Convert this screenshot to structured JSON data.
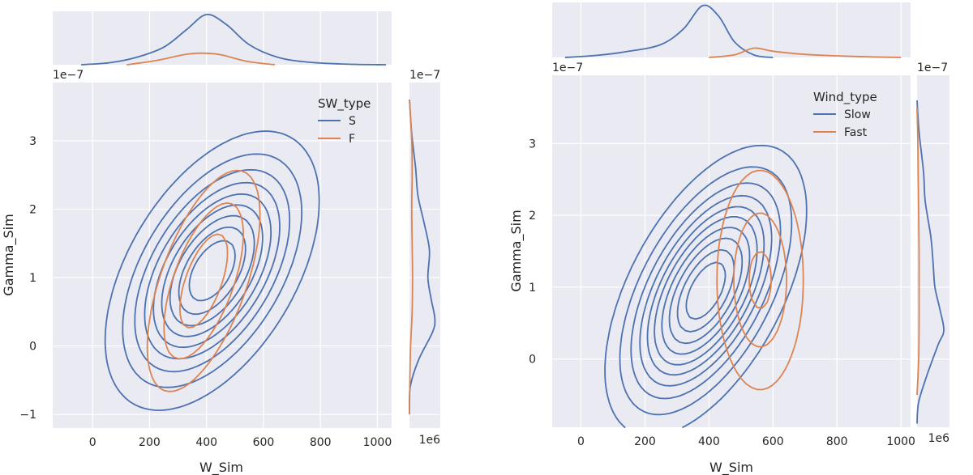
{
  "colors": {
    "panel_bg": "#EAEAF2",
    "grid": "#FFFFFF"
  },
  "chart_data": [
    {
      "type": "kde_contour_joint",
      "xlabel": "W_Sim",
      "ylabel": "Gamma_Sim",
      "y_offset_label": "1e−7",
      "xlim": [
        -140,
        1050
      ],
      "ylim": [
        -1.2,
        3.85
      ],
      "x_ticks": [
        0,
        200,
        400,
        600,
        800,
        1000
      ],
      "y_ticks": [
        -1,
        0,
        1,
        2,
        3
      ],
      "x_tick_labels": [
        "0",
        "200",
        "400",
        "600",
        "800",
        "1000"
      ],
      "y_tick_labels": [
        "−1",
        "0",
        "1",
        "2",
        "3"
      ],
      "grid": true,
      "legend": {
        "title": "SW_type",
        "placement": "top-right",
        "entries": [
          "S",
          "F"
        ]
      },
      "marginal_x_ylim": [
        0,
        1.0
      ],
      "marginal_y_xlim": [
        0,
        3.8
      ],
      "marginal_y_offset_label": "1e6",
      "marginal_y_offset_label_top": "1e−7",
      "series": [
        {
          "name": "S",
          "color": "#4C72B0",
          "kde": [
            {
              "cx": 420,
              "cy": 1.1,
              "sx": 175,
              "sy": 0.95,
              "rho": 0.5,
              "w": 1.0
            }
          ],
          "levels": [
            0.1,
            0.2,
            0.3,
            0.4,
            0.5,
            0.6,
            0.7,
            0.8,
            0.9
          ],
          "marginal_x": [
            [
              -40,
              0.0
            ],
            [
              60,
              0.04
            ],
            [
              150,
              0.14
            ],
            [
              250,
              0.35
            ],
            [
              330,
              0.7
            ],
            [
              400,
              1.0
            ],
            [
              470,
              0.8
            ],
            [
              550,
              0.4
            ],
            [
              650,
              0.15
            ],
            [
              760,
              0.05
            ],
            [
              900,
              0.01
            ],
            [
              1030,
              0.0
            ]
          ],
          "marginal_y": [
            [
              -1.0,
              0.0
            ],
            [
              -0.6,
              0.1
            ],
            [
              -0.2,
              1.2
            ],
            [
              0.2,
              3.0
            ],
            [
              0.4,
              3.3
            ],
            [
              0.7,
              2.8
            ],
            [
              1.0,
              2.4
            ],
            [
              1.4,
              2.6
            ],
            [
              1.8,
              1.9
            ],
            [
              2.2,
              1.1
            ],
            [
              2.6,
              0.8
            ],
            [
              3.1,
              0.3
            ],
            [
              3.6,
              0.0
            ]
          ]
        },
        {
          "name": "F",
          "color": "#DD8452",
          "kde": [
            {
              "cx": 390,
              "cy": 0.95,
              "sx": 110,
              "sy": 0.9,
              "rho": 0.6,
              "w": 1.0
            }
          ],
          "levels": [
            0.2,
            0.45,
            0.75
          ],
          "marginal_x": [
            [
              120,
              0.0
            ],
            [
              220,
              0.08
            ],
            [
              320,
              0.2
            ],
            [
              380,
              0.23
            ],
            [
              450,
              0.2
            ],
            [
              540,
              0.07
            ],
            [
              640,
              0.0
            ]
          ],
          "marginal_y": [
            [
              -1.0,
              0.0
            ],
            [
              -0.5,
              0.05
            ],
            [
              0.0,
              0.15
            ],
            [
              0.5,
              0.35
            ],
            [
              1.0,
              0.4
            ],
            [
              1.5,
              0.35
            ],
            [
              2.0,
              0.3
            ],
            [
              2.5,
              0.35
            ],
            [
              3.0,
              0.3
            ],
            [
              3.6,
              0.0
            ]
          ]
        }
      ]
    },
    {
      "type": "kde_contour_joint",
      "xlabel": "W_Sim",
      "ylabel": "Gamma_Sim",
      "y_offset_label": "1e−7",
      "xlim": [
        -90,
        1030
      ],
      "ylim": [
        -0.95,
        3.95
      ],
      "x_ticks": [
        0,
        200,
        400,
        600,
        800,
        1000
      ],
      "y_ticks": [
        0,
        1,
        2,
        3
      ],
      "x_tick_labels": [
        "0",
        "200",
        "400",
        "600",
        "800",
        "1000"
      ],
      "y_tick_labels": [
        "0",
        "1",
        "2",
        "3"
      ],
      "grid": true,
      "legend": {
        "title": "Wind_type",
        "placement": "top-right",
        "entries": [
          "Slow",
          "Fast"
        ]
      },
      "marginal_x_ylim": [
        0,
        1.0
      ],
      "marginal_y_xlim": [
        0,
        3.8
      ],
      "marginal_y_offset_label": "1e6",
      "marginal_y_offset_label_top": "1e−7",
      "series": [
        {
          "name": "Slow",
          "color": "#4C72B0",
          "kde": [
            {
              "cx": 390,
              "cy": 0.95,
              "sx": 140,
              "sy": 0.9,
              "rho": 0.55,
              "w": 1.0
            }
          ],
          "levels": [
            0.08,
            0.16,
            0.25,
            0.34,
            0.43,
            0.52,
            0.62,
            0.72,
            0.82,
            0.91
          ],
          "marginal_x": [
            [
              -50,
              0.0
            ],
            [
              50,
              0.04
            ],
            [
              150,
              0.12
            ],
            [
              250,
              0.25
            ],
            [
              320,
              0.55
            ],
            [
              380,
              1.0
            ],
            [
              430,
              0.8
            ],
            [
              480,
              0.3
            ],
            [
              540,
              0.05
            ],
            [
              600,
              0.0
            ]
          ],
          "marginal_y": [
            [
              -0.9,
              0.0
            ],
            [
              -0.6,
              0.2
            ],
            [
              -0.2,
              1.3
            ],
            [
              0.2,
              2.6
            ],
            [
              0.4,
              3.3
            ],
            [
              0.7,
              2.8
            ],
            [
              1.0,
              2.2
            ],
            [
              1.3,
              2.0
            ],
            [
              1.7,
              1.7
            ],
            [
              2.2,
              1.0
            ],
            [
              2.6,
              0.8
            ],
            [
              3.1,
              0.3
            ],
            [
              3.4,
              0.1
            ],
            [
              3.6,
              0.0
            ]
          ]
        },
        {
          "name": "Fast",
          "color": "#DD8452",
          "kde": [
            {
              "cx": 560,
              "cy": 1.1,
              "sx": 75,
              "sy": 0.85,
              "rho": 0.0,
              "w": 1.0
            }
          ],
          "levels": [
            0.2,
            0.55,
            0.9
          ],
          "marginal_x": [
            [
              400,
              0.0
            ],
            [
              480,
              0.05
            ],
            [
              540,
              0.18
            ],
            [
              600,
              0.12
            ],
            [
              700,
              0.06
            ],
            [
              850,
              0.02
            ],
            [
              1000,
              0.0
            ]
          ],
          "marginal_y": [
            [
              -0.5,
              0.0
            ],
            [
              0.0,
              0.2
            ],
            [
              0.5,
              0.25
            ],
            [
              1.0,
              0.25
            ],
            [
              1.5,
              0.25
            ],
            [
              2.0,
              0.2
            ],
            [
              2.5,
              0.15
            ],
            [
              3.0,
              0.1
            ],
            [
              3.5,
              0.0
            ]
          ]
        }
      ]
    }
  ]
}
